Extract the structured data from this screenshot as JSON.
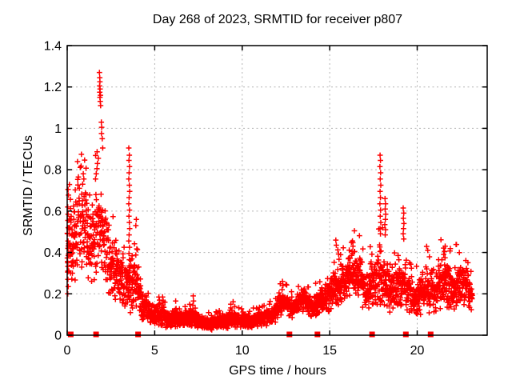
{
  "page": {
    "background": "#ffffff"
  },
  "chart_data": {
    "type": "scatter",
    "title": "Day 268 of 2023, SRMTID for receiver p807",
    "xlabel": "GPS time / hours",
    "ylabel": "SRMTID / TECUs",
    "xlim": [
      0,
      24
    ],
    "ylim": [
      0,
      1.4
    ],
    "xticks": [
      0,
      5,
      10,
      15,
      20
    ],
    "yticks": [
      0,
      0.2,
      0.4,
      0.6,
      0.8,
      1,
      1.2,
      1.4
    ],
    "ytick_labels": [
      "0",
      "0.2",
      "0.4",
      "0.6",
      "0.8",
      "1",
      "1.2",
      "1.4"
    ],
    "grid": true,
    "legend": "none",
    "marker": {
      "shape": "plus",
      "size": 7,
      "color": "#ff0000"
    },
    "colors": {
      "points": "#ff0000",
      "grid": "#b3b3b3",
      "axis": "#000000",
      "text": "#000000"
    },
    "series": [
      {
        "name": "srmtid-scatter",
        "shape": "plus",
        "x_start": 0,
        "x_end": 23.15,
        "points_per_hour": 118,
        "envelope": [
          [
            0.0,
            0.18,
            0.66
          ],
          [
            0.3,
            0.22,
            0.7
          ],
          [
            0.6,
            0.26,
            0.78
          ],
          [
            0.9,
            0.28,
            0.76
          ],
          [
            1.2,
            0.24,
            0.72
          ],
          [
            1.5,
            0.22,
            0.68
          ],
          [
            1.8,
            0.28,
            0.8
          ],
          [
            2.1,
            0.24,
            0.66
          ],
          [
            2.4,
            0.18,
            0.56
          ],
          [
            2.8,
            0.14,
            0.48
          ],
          [
            3.2,
            0.11,
            0.42
          ],
          [
            3.6,
            0.1,
            0.38
          ],
          [
            3.9,
            0.1,
            0.48
          ],
          [
            4.2,
            0.07,
            0.28
          ],
          [
            4.5,
            0.05,
            0.2
          ],
          [
            5.0,
            0.04,
            0.16
          ],
          [
            5.4,
            0.04,
            0.17
          ],
          [
            5.8,
            0.03,
            0.12
          ],
          [
            6.2,
            0.03,
            0.15
          ],
          [
            6.6,
            0.03,
            0.12
          ],
          [
            7.0,
            0.04,
            0.14
          ],
          [
            7.4,
            0.03,
            0.11
          ],
          [
            7.8,
            0.02,
            0.09
          ],
          [
            8.4,
            0.02,
            0.09
          ],
          [
            9.0,
            0.03,
            0.11
          ],
          [
            9.4,
            0.03,
            0.14
          ],
          [
            9.8,
            0.03,
            0.11
          ],
          [
            10.4,
            0.03,
            0.1
          ],
          [
            10.9,
            0.04,
            0.12
          ],
          [
            11.4,
            0.04,
            0.13
          ],
          [
            11.9,
            0.06,
            0.16
          ],
          [
            12.2,
            0.09,
            0.24
          ],
          [
            12.5,
            0.1,
            0.22
          ],
          [
            12.8,
            0.08,
            0.18
          ],
          [
            13.2,
            0.1,
            0.21
          ],
          [
            13.6,
            0.11,
            0.23
          ],
          [
            14.0,
            0.08,
            0.19
          ],
          [
            14.5,
            0.1,
            0.25
          ],
          [
            15.0,
            0.11,
            0.28
          ],
          [
            15.4,
            0.13,
            0.35
          ],
          [
            15.8,
            0.15,
            0.37
          ],
          [
            16.1,
            0.17,
            0.43
          ],
          [
            16.5,
            0.17,
            0.45
          ],
          [
            16.8,
            0.13,
            0.38
          ],
          [
            17.2,
            0.11,
            0.35
          ],
          [
            17.6,
            0.13,
            0.42
          ],
          [
            18.0,
            0.12,
            0.46
          ],
          [
            18.4,
            0.09,
            0.33
          ],
          [
            18.8,
            0.1,
            0.36
          ],
          [
            19.2,
            0.1,
            0.37
          ],
          [
            19.6,
            0.08,
            0.3
          ],
          [
            20.0,
            0.08,
            0.28
          ],
          [
            20.5,
            0.1,
            0.36
          ],
          [
            21.0,
            0.1,
            0.32
          ],
          [
            21.5,
            0.12,
            0.42
          ],
          [
            22.0,
            0.1,
            0.35
          ],
          [
            22.5,
            0.12,
            0.38
          ],
          [
            22.9,
            0.11,
            0.33
          ],
          [
            23.15,
            0.1,
            0.26
          ]
        ],
        "extra_points": [
          [
            1.84,
            1.27
          ],
          [
            1.86,
            1.245
          ],
          [
            1.87,
            1.225
          ],
          [
            1.85,
            1.205
          ],
          [
            1.88,
            1.19
          ],
          [
            1.86,
            1.175
          ],
          [
            1.9,
            1.16
          ],
          [
            1.87,
            1.15
          ],
          [
            1.89,
            1.13
          ],
          [
            1.91,
            1.11
          ],
          [
            1.95,
            1.03
          ],
          [
            1.97,
            1.005
          ],
          [
            1.96,
            0.975
          ],
          [
            2.0,
            0.95
          ],
          [
            2.03,
            0.905
          ],
          [
            1.78,
            0.855
          ],
          [
            1.73,
            0.83
          ],
          [
            1.7,
            0.805
          ],
          [
            1.66,
            0.78
          ],
          [
            1.62,
            0.755
          ],
          [
            0.92,
            0.78
          ],
          [
            0.95,
            0.755
          ],
          [
            0.88,
            0.73
          ],
          [
            3.95,
            0.56
          ],
          [
            3.92,
            0.53
          ],
          [
            3.52,
            0.905
          ],
          [
            3.55,
            0.87
          ],
          [
            3.53,
            0.845
          ],
          [
            3.56,
            0.815
          ],
          [
            3.54,
            0.785
          ],
          [
            3.52,
            0.755
          ],
          [
            3.55,
            0.725
          ],
          [
            3.57,
            0.695
          ],
          [
            3.54,
            0.665
          ],
          [
            3.52,
            0.635
          ],
          [
            3.56,
            0.605
          ],
          [
            3.53,
            0.575
          ],
          [
            3.55,
            0.545
          ],
          [
            3.57,
            0.515
          ],
          [
            3.54,
            0.485
          ],
          [
            3.52,
            0.455
          ],
          [
            3.56,
            0.425
          ],
          [
            3.53,
            0.395
          ],
          [
            3.55,
            0.365
          ],
          [
            3.54,
            0.335
          ],
          [
            3.56,
            0.305
          ],
          [
            3.53,
            0.275
          ],
          [
            3.55,
            0.245
          ],
          [
            3.54,
            0.215
          ],
          [
            3.52,
            0.19
          ],
          [
            17.88,
            0.87
          ],
          [
            17.9,
            0.845
          ],
          [
            17.87,
            0.815
          ],
          [
            17.91,
            0.785
          ],
          [
            17.89,
            0.755
          ],
          [
            17.92,
            0.725
          ],
          [
            17.88,
            0.695
          ],
          [
            17.9,
            0.665
          ],
          [
            17.87,
            0.635
          ],
          [
            17.91,
            0.605
          ],
          [
            17.89,
            0.575
          ],
          [
            17.92,
            0.545
          ],
          [
            17.88,
            0.515
          ],
          [
            17.9,
            0.49
          ],
          [
            18.16,
            0.66
          ],
          [
            18.19,
            0.635
          ],
          [
            18.17,
            0.61
          ],
          [
            18.2,
            0.585
          ],
          [
            18.18,
            0.56
          ],
          [
            18.15,
            0.535
          ],
          [
            18.19,
            0.51
          ],
          [
            18.17,
            0.485
          ],
          [
            19.2,
            0.615
          ],
          [
            19.23,
            0.59
          ],
          [
            19.21,
            0.565
          ],
          [
            19.24,
            0.54
          ],
          [
            19.22,
            0.515
          ],
          [
            19.2,
            0.49
          ],
          [
            19.23,
            0.465
          ],
          [
            0.03,
            0.62
          ],
          [
            0.05,
            0.585
          ],
          [
            0.04,
            0.555
          ],
          [
            0.06,
            0.52
          ],
          [
            0.03,
            0.49
          ],
          [
            0.05,
            0.455
          ],
          [
            0.04,
            0.42
          ],
          [
            0.06,
            0.385
          ],
          [
            0.03,
            0.35
          ],
          [
            0.05,
            0.31
          ],
          [
            0.04,
            0.27
          ],
          [
            0.06,
            0.235
          ],
          [
            0.03,
            0.2
          ],
          [
            16.3,
            0.455
          ],
          [
            16.33,
            0.43
          ],
          [
            16.28,
            0.405
          ],
          [
            21.6,
            0.43
          ],
          [
            21.57,
            0.405
          ],
          [
            15.35,
            0.46
          ],
          [
            15.38,
            0.435
          ],
          [
            7.2,
            0.19
          ],
          [
            7.22,
            0.165
          ],
          [
            7.18,
            0.145
          ],
          [
            12.3,
            0.26
          ],
          [
            12.33,
            0.24
          ],
          [
            12.28,
            0.22
          ],
          [
            5.45,
            0.185
          ],
          [
            6.2,
            0.165
          ],
          [
            9.35,
            0.15
          ]
        ]
      },
      {
        "name": "zero-flags",
        "shape": "filled-square",
        "y": 0,
        "x": [
          0.2,
          1.65,
          4.05,
          12.7,
          14.3,
          17.42,
          19.35,
          20.77
        ]
      }
    ]
  }
}
